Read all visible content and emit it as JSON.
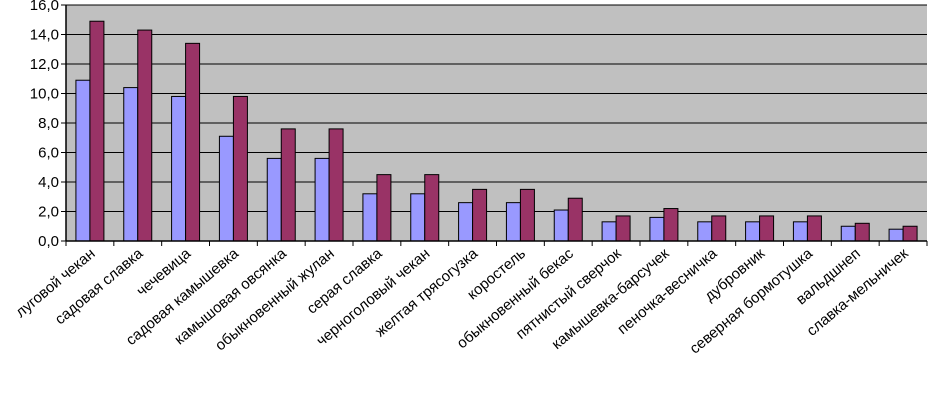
{
  "chart_data": {
    "type": "bar",
    "categories": [
      "луговой чекан",
      "садовая славка",
      "чечевица",
      "садовая камышевка",
      "камышовая овсянка",
      "обыкновенный жулан",
      "серая славка",
      "черноголовый чекан",
      "желтая трясогузка",
      "коростель",
      "обыкновенный бекас",
      "пятнистый сверчок",
      "камышевка-барсучек",
      "пеночка-весничка",
      "дубровник",
      "северная бормотушка",
      "вальдшнеп",
      "славка-мельничек"
    ],
    "series": [
      {
        "values": [
          10.9,
          10.4,
          9.8,
          7.1,
          5.6,
          5.6,
          3.2,
          3.2,
          2.6,
          2.6,
          2.1,
          1.3,
          1.6,
          1.3,
          1.3,
          1.3,
          1.0,
          0.8
        ]
      },
      {
        "values": [
          14.9,
          14.3,
          13.4,
          9.8,
          7.6,
          7.6,
          4.5,
          4.5,
          3.5,
          3.5,
          2.9,
          1.7,
          2.2,
          1.7,
          1.7,
          1.7,
          1.2,
          1.0
        ]
      }
    ],
    "ylim": [
      0,
      16
    ],
    "yticks": [
      "0,0",
      "2,0",
      "4,0",
      "6,0",
      "8,0",
      "10,0",
      "12,0",
      "14,0",
      "16,0"
    ],
    "grid": true,
    "legend": "none"
  },
  "colors": {
    "plot_background": "#c0c0c0",
    "series_1": "#9999ff",
    "series_2": "#993366",
    "grid": "#000000"
  }
}
